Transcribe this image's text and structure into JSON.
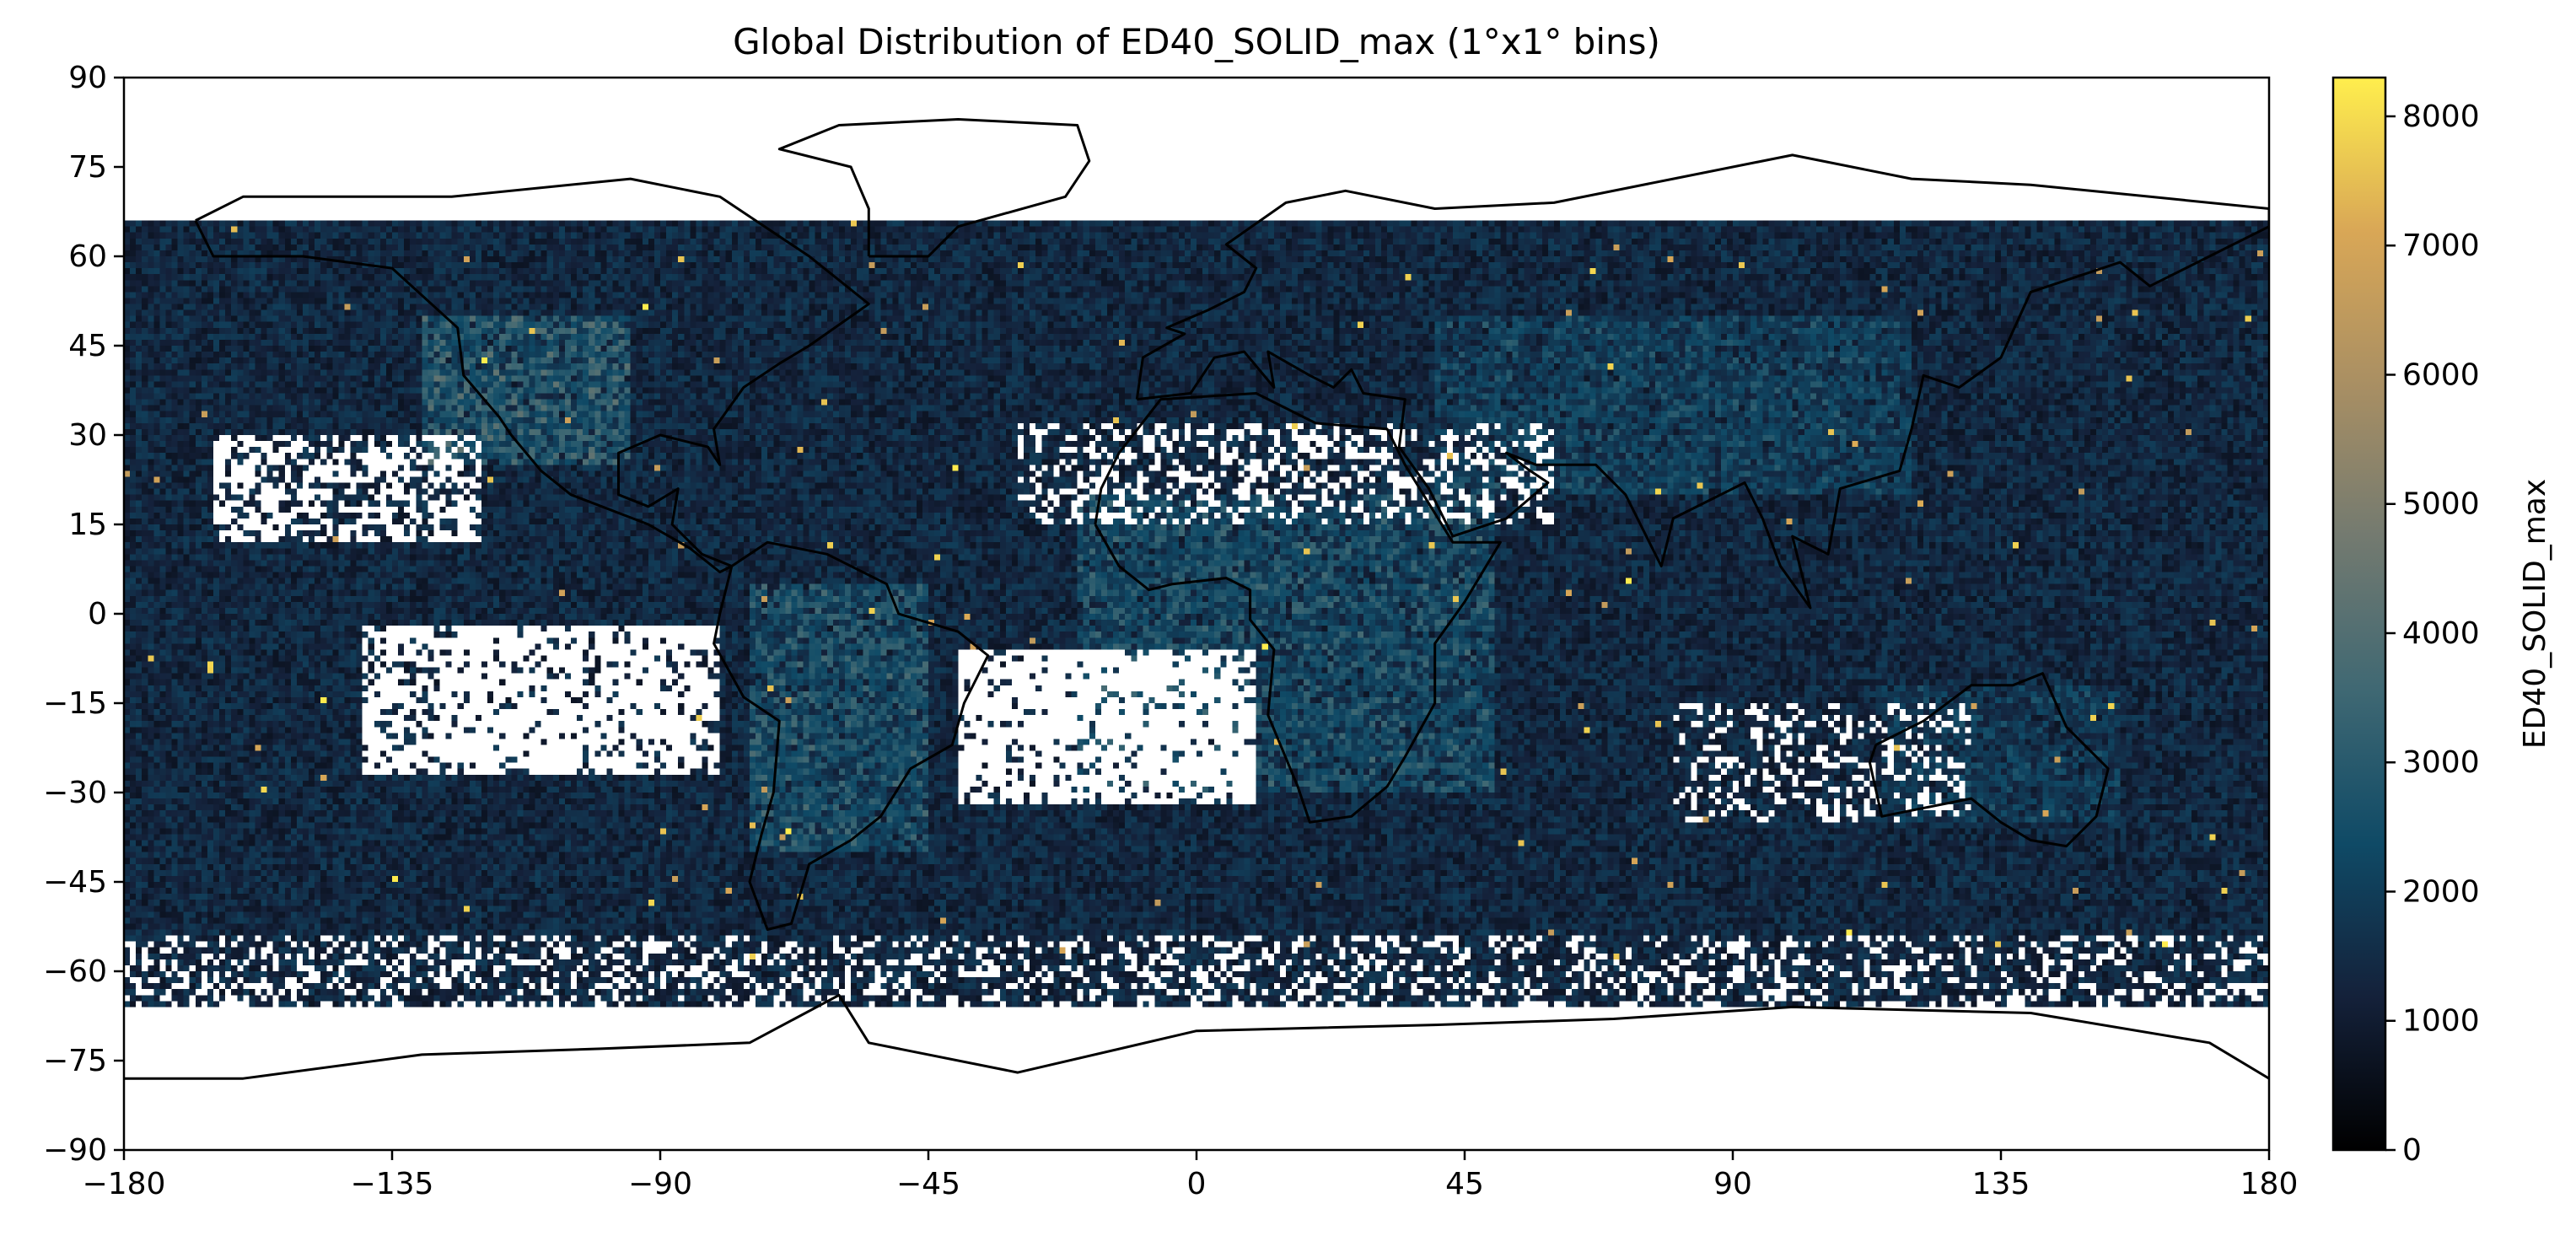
{
  "chart_data": {
    "type": "heatmap",
    "title": "Global Distribution of ED40_SOLID_max (1°x1° bins)",
    "xlabel": "",
    "ylabel": "",
    "xlim": [
      -180,
      180
    ],
    "ylim": [
      -90,
      90
    ],
    "x_ticks": [
      -180,
      -135,
      -90,
      -45,
      0,
      45,
      90,
      135,
      180
    ],
    "y_ticks": [
      90,
      75,
      60,
      45,
      30,
      15,
      0,
      -15,
      -30,
      -45,
      -60,
      -75,
      -90
    ],
    "x_tick_labels": [
      "−180",
      "−135",
      "−90",
      "−45",
      "0",
      "45",
      "90",
      "135",
      "180"
    ],
    "y_tick_labels": [
      "90",
      "75",
      "60",
      "45",
      "30",
      "15",
      "0",
      "−15",
      "−30",
      "−45",
      "−60",
      "−75",
      "−90"
    ],
    "bin_size_deg": 1,
    "data_lat_range": [
      -66,
      66
    ],
    "colorbar": {
      "label": "ED40_SOLID_max",
      "range": [
        0,
        8300
      ],
      "ticks": [
        0,
        1000,
        2000,
        3000,
        4000,
        5000,
        6000,
        7000,
        8000
      ],
      "tick_labels": [
        "0",
        "1000",
        "2000",
        "3000",
        "4000",
        "5000",
        "6000",
        "7000",
        "8000"
      ],
      "colors": [
        "#000000",
        "#14213a",
        "#0f4a66",
        "#3f6873",
        "#737a70",
        "#a98f63",
        "#d9a756",
        "#ffee4d"
      ]
    },
    "missing_value_color": "#ffffff",
    "grid": false,
    "coastlines": true,
    "borders": "dotted"
  }
}
